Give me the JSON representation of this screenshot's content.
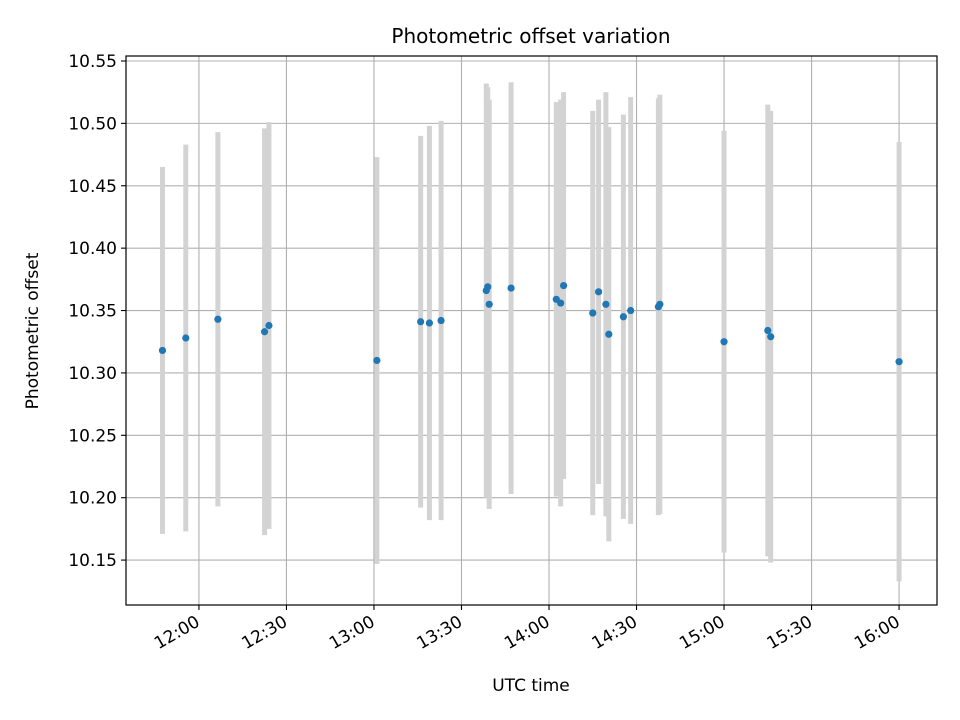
{
  "chart_data": {
    "type": "scatter",
    "title": "Photometric offset variation",
    "xlabel": "UTC time",
    "ylabel": "Photometric offset",
    "x_axis_type": "time",
    "xlim": [
      "11:35",
      "16:13"
    ],
    "ylim": [
      10.114,
      10.554
    ],
    "grid": true,
    "x_ticks": [
      "12:00",
      "12:30",
      "13:00",
      "13:30",
      "14:00",
      "14:30",
      "15:00",
      "15:30",
      "16:00"
    ],
    "y_ticks": [
      "10.15",
      "10.20",
      "10.25",
      "10.30",
      "10.35",
      "10.40",
      "10.45",
      "10.50",
      "10.55"
    ],
    "colors": {
      "points": "#1f77b4",
      "error_bars": "#d3d3d3",
      "grid": "#b0b0b0"
    },
    "series": [
      {
        "points": [
          {
            "x": "11:47:30",
            "y": 10.318,
            "err": 0.147
          },
          {
            "x": "11:55:30",
            "y": 10.328,
            "err": 0.155
          },
          {
            "x": "12:06:30",
            "y": 10.343,
            "err": 0.15
          },
          {
            "x": "12:22:30",
            "y": 10.333,
            "err": 0.163
          },
          {
            "x": "12:24:00",
            "y": 10.338,
            "err": 0.163
          },
          {
            "x": "13:01:00",
            "y": 10.31,
            "err": 0.163
          },
          {
            "x": "13:16:00",
            "y": 10.341,
            "err": 0.149
          },
          {
            "x": "13:19:00",
            "y": 10.34,
            "err": 0.158
          },
          {
            "x": "13:23:00",
            "y": 10.342,
            "err": 0.16
          },
          {
            "x": "13:38:30",
            "y": 10.366,
            "err": 0.166
          },
          {
            "x": "13:39:00",
            "y": 10.369,
            "err": 0.16
          },
          {
            "x": "13:39:30",
            "y": 10.355,
            "err": 0.164
          },
          {
            "x": "13:47:00",
            "y": 10.368,
            "err": 0.165
          },
          {
            "x": "14:02:30",
            "y": 10.359,
            "err": 0.158
          },
          {
            "x": "14:04:00",
            "y": 10.356,
            "err": 0.163
          },
          {
            "x": "14:05:00",
            "y": 10.37,
            "err": 0.155
          },
          {
            "x": "14:15:00",
            "y": 10.348,
            "err": 0.162
          },
          {
            "x": "14:17:00",
            "y": 10.365,
            "err": 0.154
          },
          {
            "x": "14:19:30",
            "y": 10.355,
            "err": 0.17
          },
          {
            "x": "14:20:30",
            "y": 10.331,
            "err": 0.166
          },
          {
            "x": "14:25:30",
            "y": 10.345,
            "err": 0.162
          },
          {
            "x": "14:28:00",
            "y": 10.35,
            "err": 0.171
          },
          {
            "x": "14:37:30",
            "y": 10.353,
            "err": 0.167
          },
          {
            "x": "14:38:00",
            "y": 10.355,
            "err": 0.168
          },
          {
            "x": "15:00:00",
            "y": 10.325,
            "err": 0.169
          },
          {
            "x": "15:15:00",
            "y": 10.334,
            "err": 0.181
          },
          {
            "x": "15:16:00",
            "y": 10.329,
            "err": 0.181
          },
          {
            "x": "16:00:00",
            "y": 10.309,
            "err": 0.176
          }
        ]
      }
    ]
  }
}
